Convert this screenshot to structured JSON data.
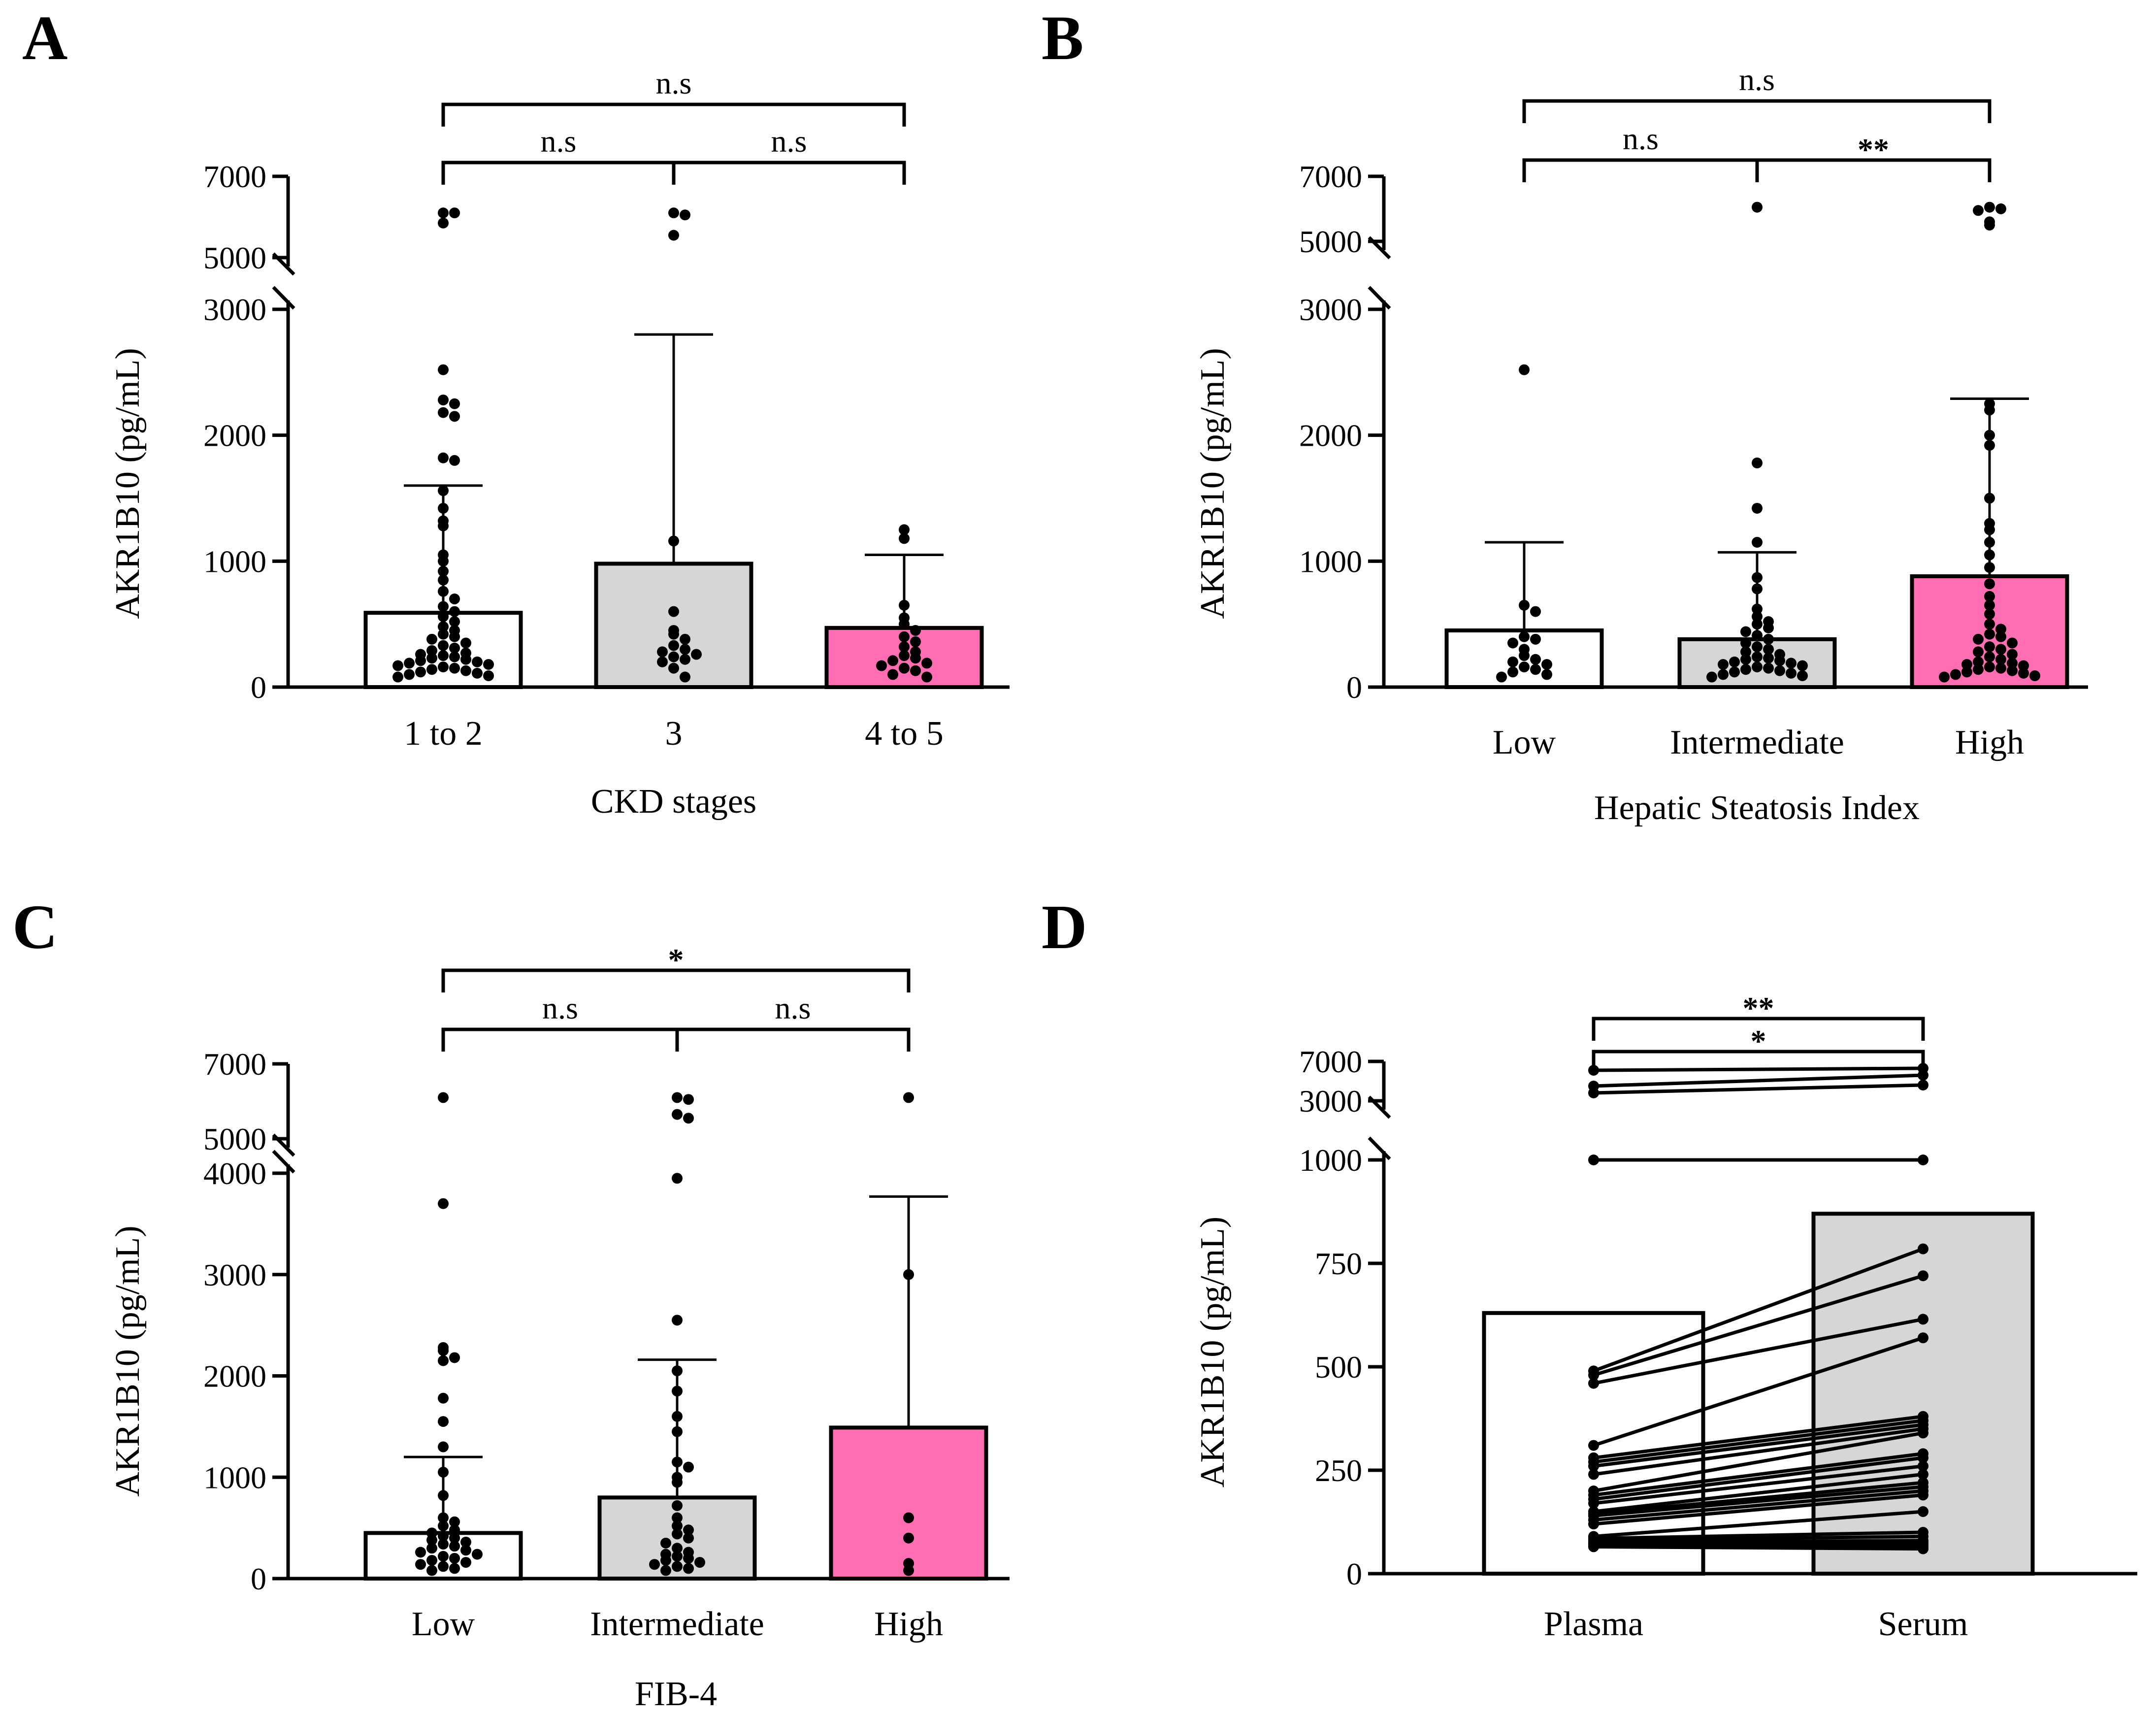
{
  "colors": {
    "white_bar": "#ffffff",
    "grey_bar": "#d6d6d6",
    "pink_bar": "#ff6eb2",
    "ink": "#000000"
  },
  "chart_data": [
    {
      "panel": "A",
      "type": "bar",
      "xlabel": "CKD stages",
      "ylabel": "AKR1B10 (pg/mL)",
      "axis_break": {
        "lower": [
          0,
          3000
        ],
        "upper": [
          5000,
          7000
        ]
      },
      "lower_ticks": [
        "0",
        "1000",
        "2000",
        "3000"
      ],
      "upper_ticks": [
        "5000",
        "7000"
      ],
      "categories": [
        "1 to 2",
        "3",
        "4 to 5"
      ],
      "values": [
        590,
        980,
        470
      ],
      "error_upper": [
        1600,
        2800,
        1050
      ],
      "bar_colors": [
        "white",
        "grey",
        "pink"
      ],
      "significance": [
        {
          "from": 0,
          "to": 1,
          "label": "n.s",
          "level": 1
        },
        {
          "from": 1,
          "to": 2,
          "label": "n.s",
          "level": 1
        },
        {
          "from": 0,
          "to": 2,
          "label": "n.s",
          "level": 2
        }
      ],
      "points": [
        [
          6100,
          6100,
          5850,
          2520,
          2280,
          2250,
          2180,
          2150,
          1820,
          1800,
          1560,
          1420,
          1320,
          1280,
          1050,
          1000,
          920,
          850,
          760,
          700,
          640,
          600,
          560,
          520,
          480,
          450,
          420,
          400,
          380,
          350,
          330,
          310,
          290,
          270,
          260,
          250,
          240,
          230,
          220,
          210,
          200,
          190,
          180,
          170,
          160,
          150,
          140,
          130,
          120,
          110,
          100,
          90,
          80
        ],
        [
          6100,
          6050,
          5550,
          1160,
          600,
          450,
          420,
          380,
          330,
          300,
          280,
          260,
          240,
          220,
          200,
          150,
          80
        ],
        [
          1250,
          1180,
          650,
          550,
          500,
          450,
          400,
          360,
          320,
          280,
          250,
          230,
          210,
          190,
          170,
          150,
          130,
          100,
          80
        ]
      ]
    },
    {
      "panel": "B",
      "type": "bar",
      "xlabel": "Hepatic Steatosis Index",
      "ylabel": "AKR1B10 (pg/mL)",
      "axis_break": {
        "lower": [
          0,
          3000
        ],
        "upper": [
          5000,
          7000
        ]
      },
      "lower_ticks": [
        "0",
        "1000",
        "2000",
        "3000"
      ],
      "upper_ticks": [
        "5000",
        "7000"
      ],
      "categories": [
        "Low",
        "Intermediate",
        "High"
      ],
      "values": [
        450,
        380,
        880
      ],
      "error_upper": [
        1150,
        1070,
        2290
      ],
      "bar_colors": [
        "white",
        "grey",
        "pink"
      ],
      "significance": [
        {
          "from": 0,
          "to": 1,
          "label": "n.s",
          "level": 1
        },
        {
          "from": 1,
          "to": 2,
          "label": "**",
          "level": 1
        },
        {
          "from": 0,
          "to": 2,
          "label": "n.s",
          "level": 2
        }
      ],
      "points": [
        [
          2520,
          650,
          600,
          400,
          380,
          350,
          300,
          250,
          220,
          200,
          180,
          160,
          140,
          120,
          100,
          80
        ],
        [
          6050,
          1780,
          1420,
          1150,
          870,
          780,
          620,
          560,
          520,
          500,
          470,
          440,
          410,
          380,
          350,
          320,
          300,
          280,
          260,
          240,
          230,
          220,
          210,
          200,
          190,
          180,
          170,
          160,
          150,
          140,
          130,
          120,
          110,
          100,
          90,
          80
        ],
        [
          6050,
          6000,
          5950,
          5600,
          5500,
          2250,
          2200,
          2000,
          1920,
          1500,
          1300,
          1250,
          1150,
          1050,
          950,
          820,
          720,
          650,
          580,
          500,
          460,
          420,
          400,
          380,
          350,
          320,
          300,
          280,
          260,
          240,
          220,
          200,
          190,
          180,
          170,
          160,
          150,
          140,
          130,
          120,
          110,
          100,
          90,
          80
        ]
      ]
    },
    {
      "panel": "C",
      "type": "bar",
      "xlabel": "FIB-4",
      "ylabel": "AKR1B10 (pg/mL)",
      "axis_break": {
        "lower": [
          0,
          4000
        ],
        "upper": [
          5000,
          7000
        ]
      },
      "lower_ticks": [
        "0",
        "1000",
        "2000",
        "3000",
        "4000"
      ],
      "upper_ticks": [
        "5000",
        "7000"
      ],
      "categories": [
        "Low",
        "Intermediate",
        "High"
      ],
      "values": [
        450,
        800,
        1490
      ],
      "error_upper": [
        1200,
        2160,
        3770
      ],
      "bar_colors": [
        "white",
        "grey",
        "pink"
      ],
      "significance": [
        {
          "from": 0,
          "to": 1,
          "label": "n.s",
          "level": 1
        },
        {
          "from": 1,
          "to": 2,
          "label": "n.s",
          "level": 1
        },
        {
          "from": 0,
          "to": 2,
          "label": "*",
          "level": 2
        }
      ],
      "points": [
        [
          6100,
          3700,
          2280,
          2250,
          2180,
          2150,
          1780,
          1550,
          1300,
          1050,
          820,
          600,
          560,
          520,
          480,
          450,
          420,
          400,
          380,
          360,
          340,
          320,
          300,
          280,
          260,
          240,
          220,
          200,
          180,
          160,
          140,
          120,
          100,
          80
        ],
        [
          6100,
          6050,
          5650,
          5550,
          3950,
          2550,
          2050,
          1850,
          1600,
          1450,
          1150,
          1100,
          1000,
          950,
          720,
          600,
          520,
          480,
          440,
          400,
          350,
          300,
          260,
          240,
          220,
          200,
          180,
          160,
          140,
          120,
          100,
          80
        ],
        [
          6100,
          3000,
          600,
          400,
          150,
          80
        ]
      ]
    },
    {
      "panel": "D",
      "type": "bar",
      "xlabel": "",
      "ylabel": "AKR1B10 (pg/mL)",
      "axis_break": {
        "lower": [
          0,
          1000
        ],
        "upper": [
          3000,
          7000
        ]
      },
      "lower_ticks": [
        "0",
        "250",
        "500",
        "750",
        "1000"
      ],
      "upper_ticks": [
        "3000",
        "7000"
      ],
      "categories": [
        "Plasma",
        "Serum"
      ],
      "values": [
        630,
        870
      ],
      "bar_colors": [
        "white",
        "grey"
      ],
      "significance": [
        {
          "from": 0,
          "to": 1,
          "label": "*",
          "level": 1
        },
        {
          "from": 0,
          "to": 1,
          "label": "**",
          "level": 2
        }
      ],
      "pairs": [
        [
          6100,
          6300
        ],
        [
          4500,
          5600
        ],
        [
          3800,
          4600
        ],
        [
          1040,
          1050
        ],
        [
          490,
          785
        ],
        [
          480,
          720
        ],
        [
          460,
          615
        ],
        [
          310,
          570
        ],
        [
          280,
          380
        ],
        [
          270,
          370
        ],
        [
          260,
          360
        ],
        [
          240,
          350
        ],
        [
          200,
          340
        ],
        [
          190,
          290
        ],
        [
          180,
          280
        ],
        [
          170,
          260
        ],
        [
          150,
          240
        ],
        [
          145,
          220
        ],
        [
          140,
          210
        ],
        [
          130,
          200
        ],
        [
          120,
          190
        ],
        [
          90,
          150
        ],
        [
          85,
          100
        ],
        [
          80,
          90
        ],
        [
          75,
          80
        ],
        [
          72,
          75
        ],
        [
          70,
          70
        ],
        [
          68,
          65
        ],
        [
          65,
          60
        ]
      ]
    }
  ],
  "panels": [
    "A",
    "B",
    "C",
    "D"
  ]
}
